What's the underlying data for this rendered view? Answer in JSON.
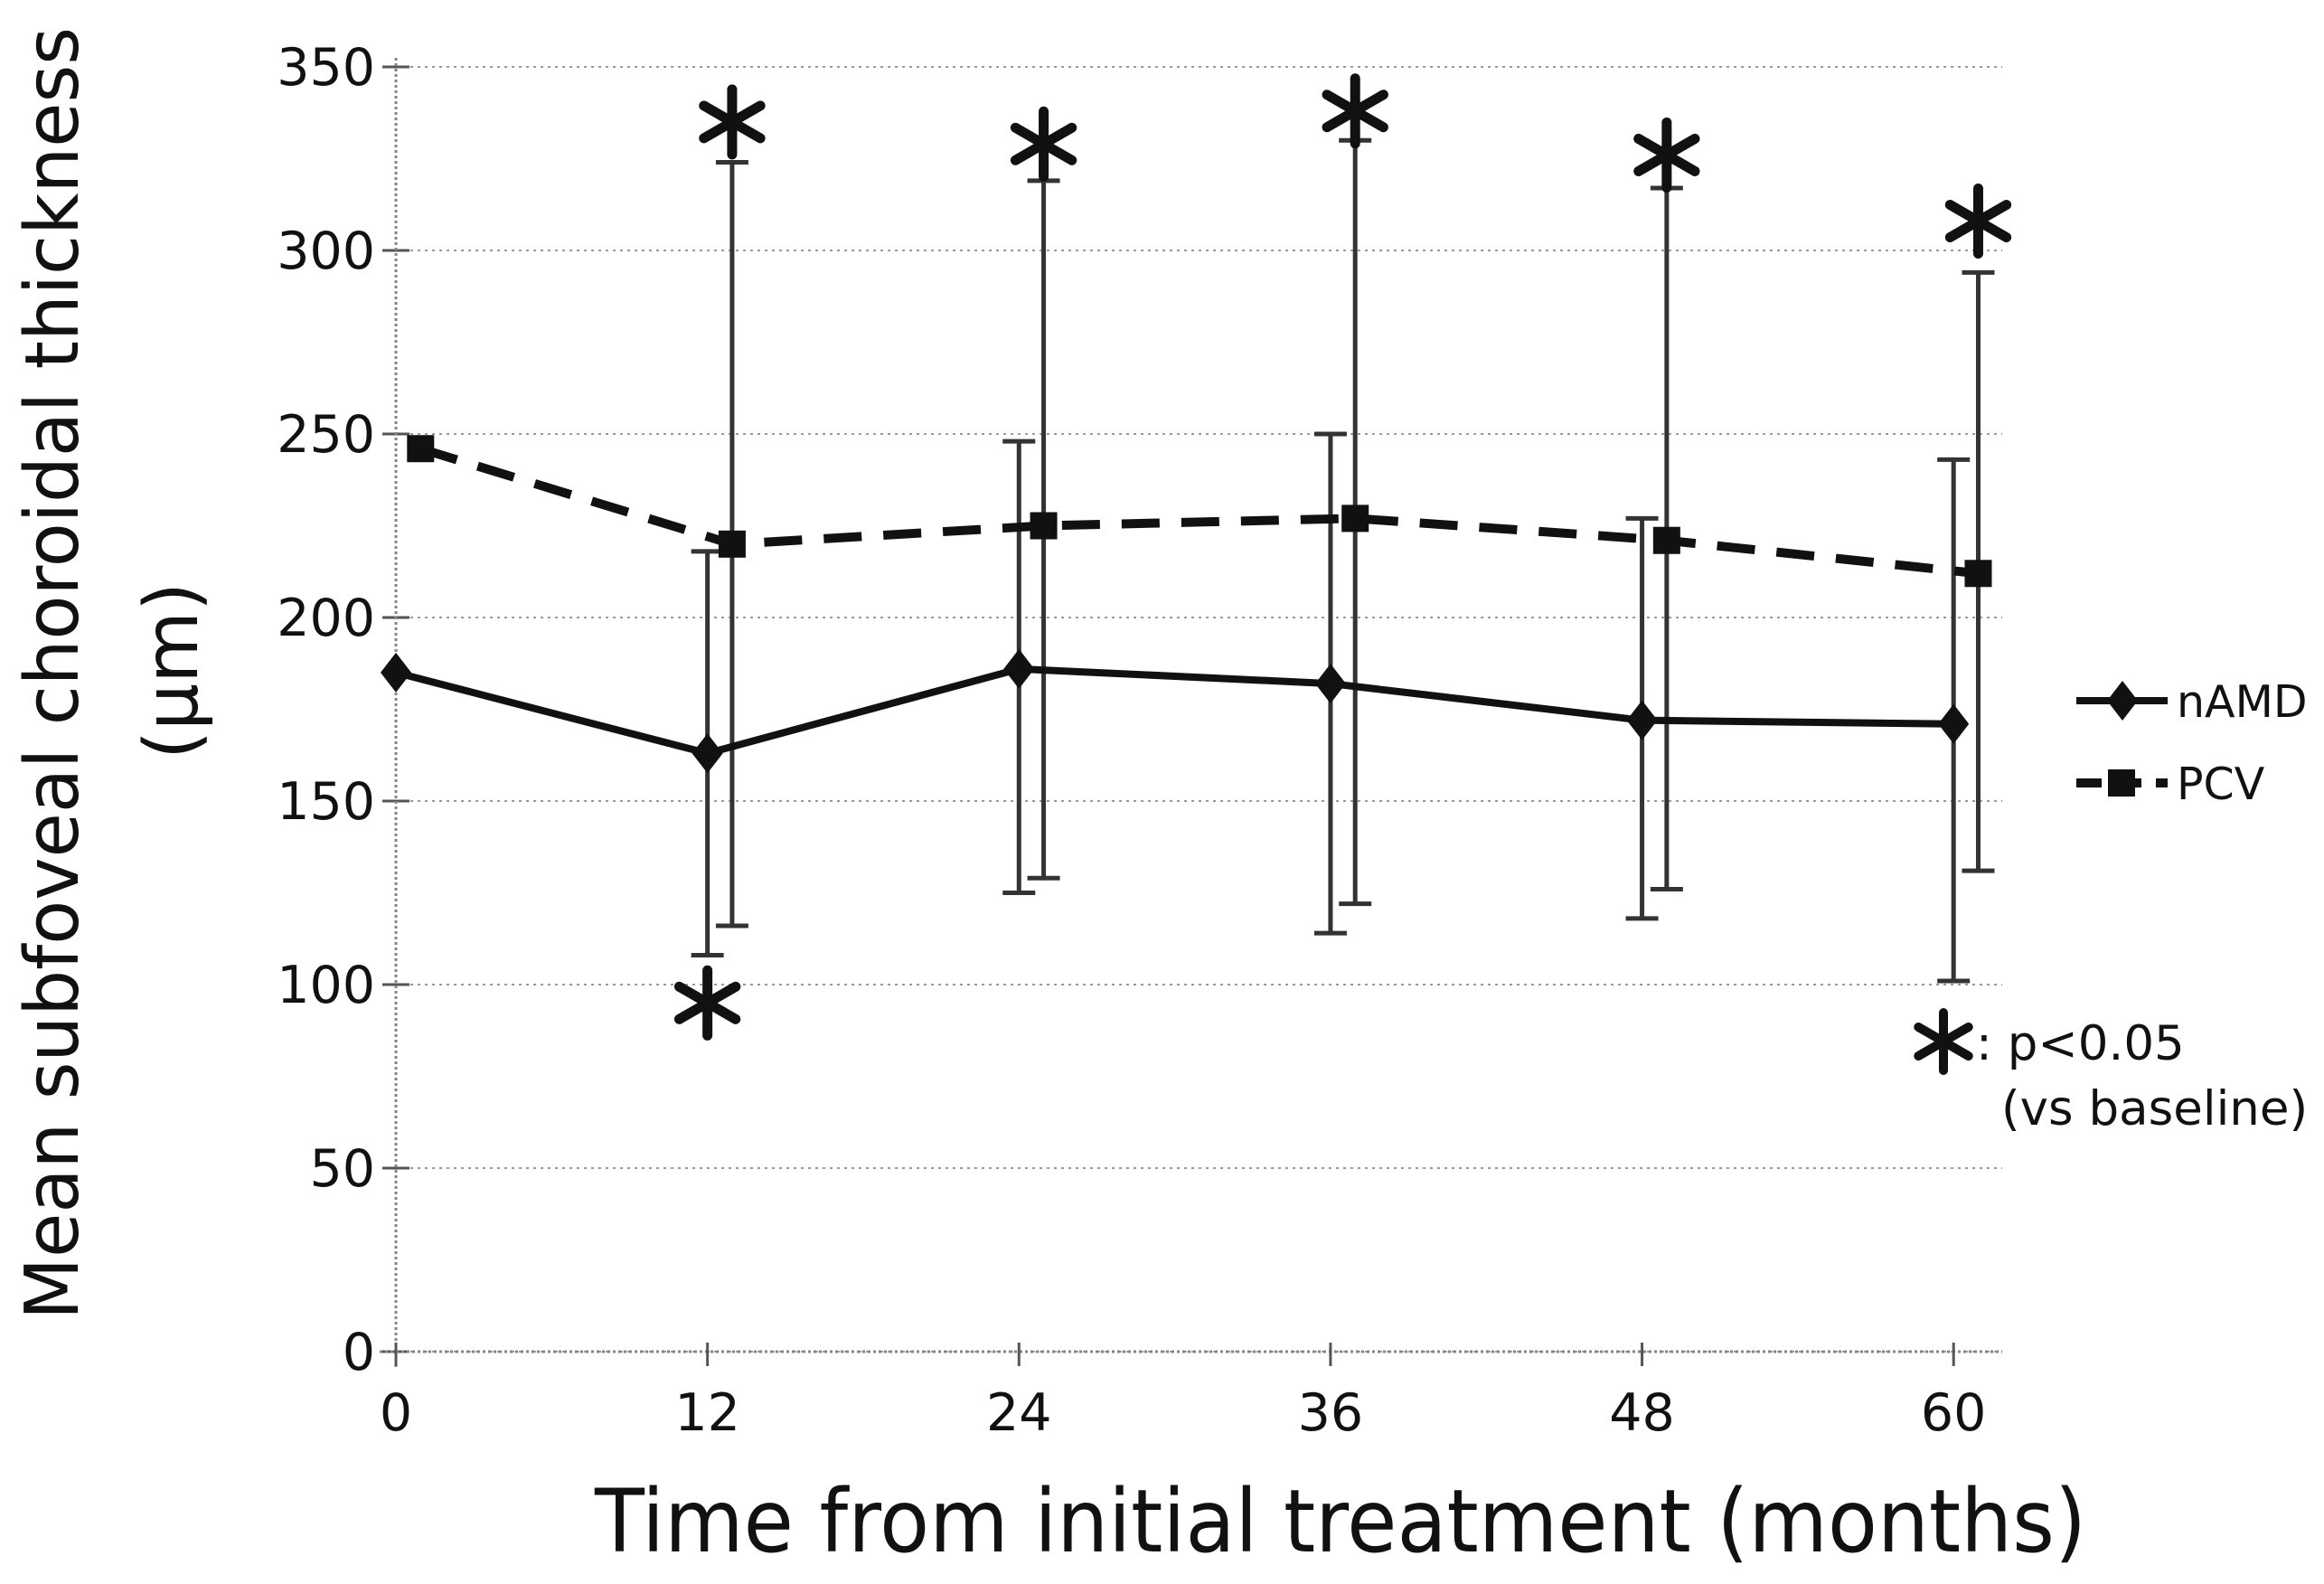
{
  "figure": {
    "background_color": "#ffffff",
    "ink_color": "#111111",
    "grid_color": "#999999"
  },
  "chart_data": {
    "type": "line",
    "title": "",
    "xlabel": "Time from initial treatment (months)",
    "ylabel_line1": "Mean subfoveal choroidal thickness",
    "ylabel_line2": "(μm)",
    "x": [
      0,
      12,
      24,
      36,
      48,
      60
    ],
    "x_tick_labels": [
      "0",
      "12",
      "24",
      "36",
      "48",
      "60"
    ],
    "y_ticks": [
      0,
      50,
      100,
      150,
      200,
      250,
      300,
      350
    ],
    "ylim": [
      0,
      350
    ],
    "xlim": [
      0,
      62
    ],
    "grid": true,
    "legend_position": "right",
    "series": [
      {
        "name": "nAMD",
        "marker": "diamond",
        "line": "solid",
        "x_offset_months": 0,
        "values": [
          185,
          163,
          186,
          182,
          172,
          171
        ],
        "error_low": [
          null,
          108,
          125,
          114,
          118,
          101
        ],
        "error_high": [
          null,
          218,
          248,
          250,
          227,
          243
        ]
      },
      {
        "name": "PCV",
        "marker": "square",
        "line": "dashed",
        "x_offset_months": 0.95,
        "values": [
          246,
          220,
          225,
          227,
          221,
          212
        ],
        "error_low": [
          null,
          116,
          129,
          122,
          126,
          131
        ],
        "error_high": [
          null,
          324,
          319,
          330,
          317,
          294
        ]
      }
    ],
    "significance": {
      "above": [
        {
          "month": 12,
          "value": 335,
          "series": "PCV"
        },
        {
          "month": 24,
          "value": 329,
          "series": "PCV"
        },
        {
          "month": 36,
          "value": 338,
          "series": "PCV"
        },
        {
          "month": 48,
          "value": 326,
          "series": "PCV"
        },
        {
          "month": 60,
          "value": 308,
          "series": "PCV"
        }
      ],
      "below": [
        {
          "month": 12,
          "value": 95,
          "series": "nAMD"
        }
      ]
    },
    "annotation": {
      "star": "*",
      "line1_text": ": p<0.05",
      "line2": "(vs baseline)"
    }
  }
}
